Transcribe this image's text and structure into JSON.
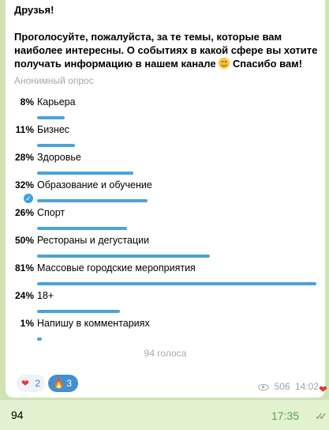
{
  "message": {
    "greeting": "Друзья!",
    "question": "Проголосуйте, пожалуйста, за те темы, которые вам наиболее интересны. О событиях в какой сфере вы хотите получать информацию в нашем канале",
    "question_tail": "Спасибо вам!",
    "emoji_icon": "smiling-face-icon",
    "poll_type": "Анонимный опрос",
    "options": [
      {
        "percent": "8%",
        "value": 8,
        "label": "Карьера"
      },
      {
        "percent": "11%",
        "value": 11,
        "label": "Бизнес"
      },
      {
        "percent": "28%",
        "value": 28,
        "label": "Здоровье"
      },
      {
        "percent": "32%",
        "value": 32,
        "label": "Образование и обучение",
        "chosen": true
      },
      {
        "percent": "26%",
        "value": 26,
        "label": "Спорт"
      },
      {
        "percent": "50%",
        "value": 50,
        "label": "Рестораны и дегустации"
      },
      {
        "percent": "81%",
        "value": 81,
        "label": "Массовые городские мероприятия"
      },
      {
        "percent": "24%",
        "value": 24,
        "label": "18+"
      },
      {
        "percent": "1%",
        "value": 1,
        "label": "Напишу в комментариях"
      }
    ],
    "votes": "94 голоса",
    "reactions": [
      {
        "icon": "heart-icon",
        "glyph": "❤",
        "count": "2"
      },
      {
        "icon": "fire-icon",
        "glyph": "🔥",
        "count": "3"
      }
    ],
    "views": "506",
    "time": "14:02"
  },
  "outgoing": {
    "text": "94",
    "time": "17:35",
    "status_icon": "double-check-icon"
  },
  "colors": {
    "bar": "#4ba3d9",
    "background": "#cfe3b4",
    "outgoing_bubble": "#e2f1cf"
  }
}
